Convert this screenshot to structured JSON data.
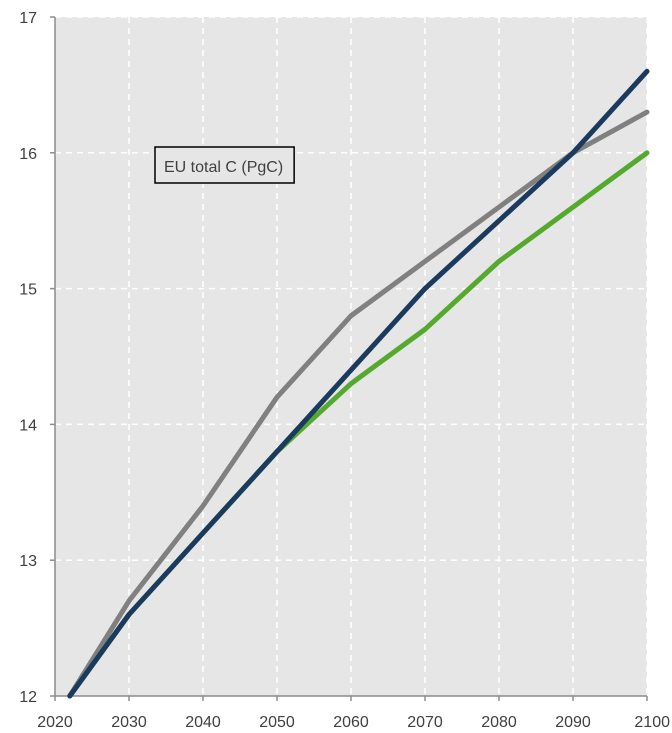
{
  "chart_data": {
    "type": "line",
    "title": "",
    "xlabel": "",
    "ylabel": "",
    "xlim": [
      2020,
      2100
    ],
    "ylim": [
      12,
      17
    ],
    "x_ticks": [
      2020,
      2030,
      2040,
      2050,
      2060,
      2070,
      2080,
      2090,
      2100
    ],
    "y_ticks": [
      12,
      13,
      14,
      15,
      16,
      17
    ],
    "grid": true,
    "background": "#e6e6e6",
    "annotation": "EU total C (PgC)",
    "series": [
      {
        "color": "#55aa2e",
        "x": [
          2022,
          2030,
          2040,
          2050,
          2060,
          2070,
          2080,
          2090,
          2100
        ],
        "y": [
          12.0,
          12.6,
          13.2,
          13.8,
          14.3,
          14.7,
          15.2,
          15.6,
          16.0
        ]
      },
      {
        "color": "#808080",
        "x": [
          2022,
          2030,
          2040,
          2050,
          2060,
          2070,
          2080,
          2090,
          2100
        ],
        "y": [
          12.0,
          12.7,
          13.4,
          14.2,
          14.8,
          15.2,
          15.6,
          16.0,
          16.3
        ]
      },
      {
        "color": "#1a3a5e",
        "x": [
          2022,
          2030,
          2040,
          2050,
          2060,
          2070,
          2080,
          2090,
          2100
        ],
        "y": [
          12.0,
          12.6,
          13.2,
          13.8,
          14.4,
          15.0,
          15.5,
          16.0,
          16.6
        ]
      }
    ]
  }
}
